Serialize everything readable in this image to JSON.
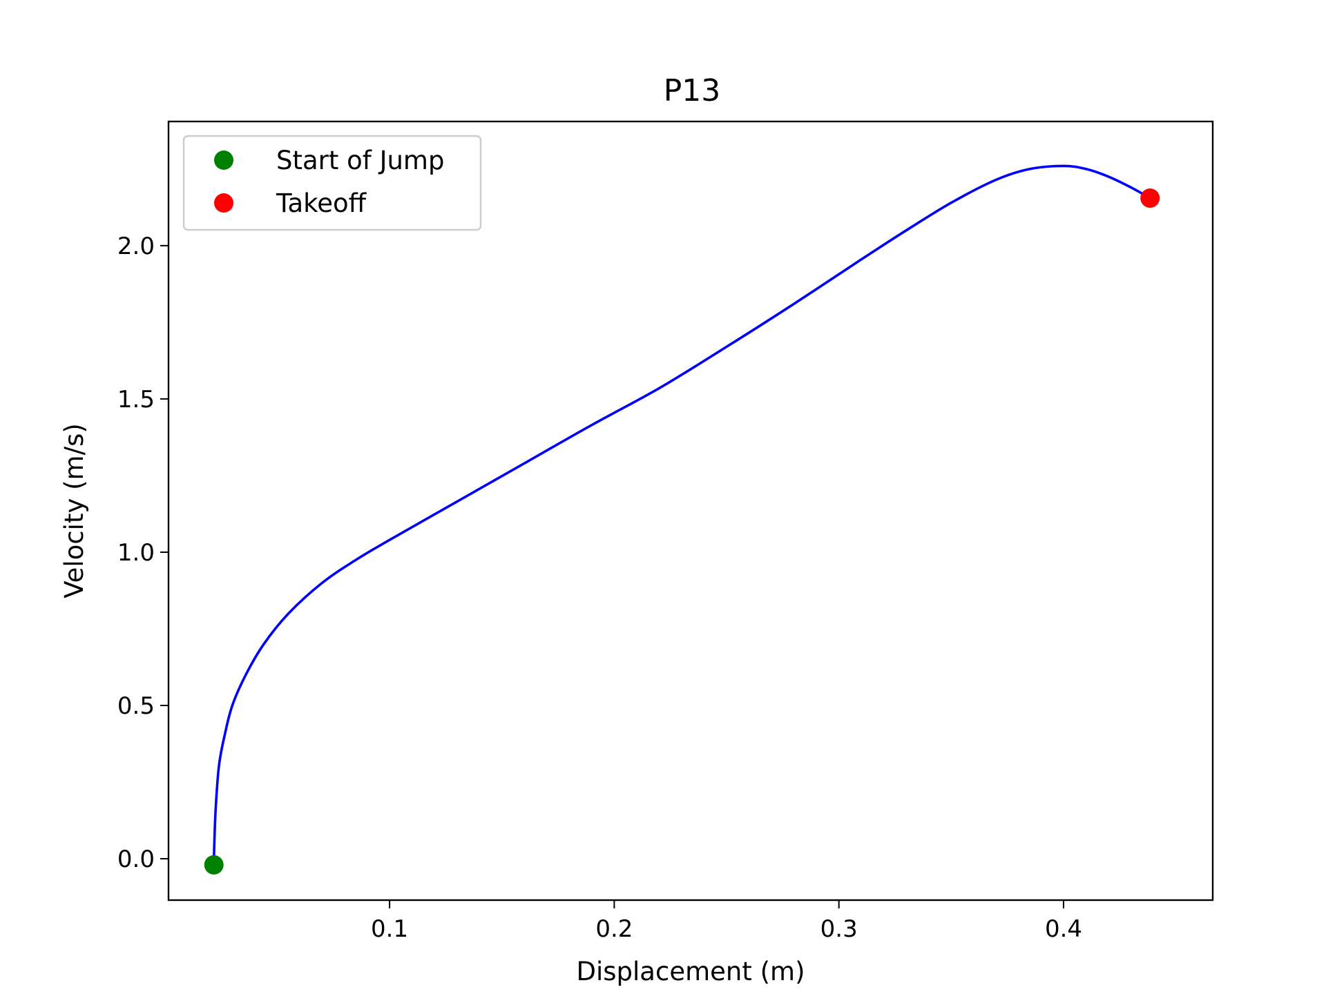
{
  "chart_data": {
    "type": "line",
    "title": "P13",
    "xlabel": "Displacement (m)",
    "ylabel": "Velocity (m/s)",
    "xlim": [
      0.0016,
      0.4664
    ],
    "ylim": [
      -0.135,
      2.405
    ],
    "xticks": [
      {
        "value": 0.1,
        "label": "0.1"
      },
      {
        "value": 0.2,
        "label": "0.2"
      },
      {
        "value": 0.3,
        "label": "0.3"
      },
      {
        "value": 0.4,
        "label": "0.4"
      }
    ],
    "yticks": [
      {
        "value": 0.0,
        "label": "0.0"
      },
      {
        "value": 0.5,
        "label": "0.5"
      },
      {
        "value": 1.0,
        "label": "1.0"
      },
      {
        "value": 1.5,
        "label": "1.5"
      },
      {
        "value": 2.0,
        "label": "2.0"
      }
    ],
    "grid": false,
    "legend_position": "upper left",
    "series": [
      {
        "color": "#0000ff",
        "x": [
          0.0218,
          0.0225,
          0.024,
          0.0265,
          0.03,
          0.036,
          0.044,
          0.055,
          0.07,
          0.085,
          0.1,
          0.13,
          0.16,
          0.19,
          0.22,
          0.25,
          0.28,
          0.31,
          0.33,
          0.35,
          0.37,
          0.385,
          0.4,
          0.41,
          0.42,
          0.43,
          0.4385
        ],
        "y": [
          0.0,
          0.15,
          0.3,
          0.4,
          0.5,
          0.6,
          0.7,
          0.8,
          0.9,
          0.975,
          1.04,
          1.165,
          1.29,
          1.415,
          1.535,
          1.67,
          1.81,
          1.955,
          2.05,
          2.14,
          2.215,
          2.25,
          2.26,
          2.25,
          2.225,
          2.19,
          2.155
        ]
      }
    ],
    "markers": [
      {
        "name": "Start of Jump",
        "color": "#008000",
        "x": 0.0218,
        "y": -0.02
      },
      {
        "name": "Takeoff",
        "color": "#ff0000",
        "x": 0.4385,
        "y": 2.155
      }
    ]
  }
}
